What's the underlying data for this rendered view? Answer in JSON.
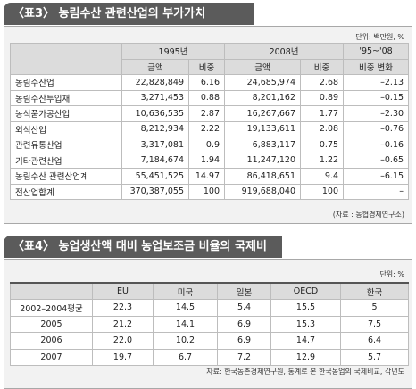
{
  "table3": {
    "title": "〈표3〉 농림수산 관련산업의 부가가치",
    "unit": "단위: 백만원, %",
    "header": {
      "groups": [
        "1995년",
        "2008년",
        "'95~'08"
      ],
      "columns": [
        "금액",
        "비중",
        "금액",
        "비중",
        "비중 변화"
      ]
    },
    "rows": [
      [
        "농림수산업",
        "22,828,849",
        "6.16",
        "24,685,974",
        "2.68",
        "–2.13"
      ],
      [
        "농림수산투입재",
        "3,271,453",
        "0.88",
        "8,201,162",
        "0.89",
        "–0.15"
      ],
      [
        "농식품가공산업",
        "10,636,535",
        "2.87",
        "16,267,667",
        "1.77",
        "–2.30"
      ],
      [
        "외식산업",
        "8,212,934",
        "2.22",
        "19,133,611",
        "2.08",
        "–0.76"
      ],
      [
        "관련유통산업",
        "3,317,081",
        "0.9",
        "6,883,117",
        "0.75",
        "–0.16"
      ],
      [
        "기타관련산업",
        "7,184,674",
        "1.94",
        "11,247,120",
        "1.22",
        "–0.65"
      ],
      [
        "농림수산 관련산업계",
        "55,451,525",
        "14.97",
        "86,418,651",
        "9.4",
        "–6.15"
      ],
      [
        "전산업합계",
        "370,387,055",
        "100",
        "919,688,040",
        "100",
        "–"
      ]
    ],
    "source": "(자료 : 농협경제연구소)"
  },
  "table4": {
    "title": "〈표4〉 농업생산액 대비 농업보조금 비율의 국제비교",
    "unit": "단위: %",
    "header": [
      "EU",
      "미국",
      "일본",
      "OECD",
      "한국"
    ],
    "rows": [
      [
        "2002–2004평균",
        "22.3",
        "14.5",
        "5.4",
        "15.5",
        "5"
      ],
      [
        "2005",
        "21.2",
        "14.1",
        "6.9",
        "15.3",
        "7.5"
      ],
      [
        "2006",
        "22.0",
        "10.2",
        "6.9",
        "14.7",
        "6.4"
      ],
      [
        "2007",
        "19.7",
        "6.7",
        "7.2",
        "12.9",
        "5.7"
      ]
    ],
    "source": "자료: 한국농촌경제연구원, 통계로 본 한국농업의 국제비교, 각년도"
  }
}
